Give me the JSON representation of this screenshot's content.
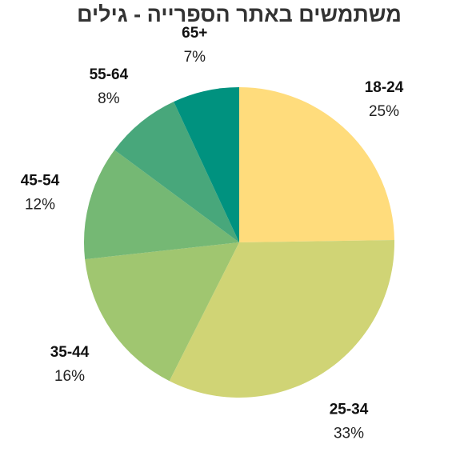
{
  "chart_data": {
    "type": "pie",
    "title": "משתמשים באתר הספרייה - גילים",
    "start_angle_deg": 0,
    "direction": "clockwise",
    "legend": "none",
    "slices": [
      {
        "label": "18-24",
        "value": 25,
        "value_label": "25%",
        "color": "#FFDC7C"
      },
      {
        "label": "25-34",
        "value": 33,
        "value_label": "33%",
        "color": "#D0D475"
      },
      {
        "label": "35-44",
        "value": 16,
        "value_label": "16%",
        "color": "#A0C670"
      },
      {
        "label": "45-54",
        "value": 12,
        "value_label": "12%",
        "color": "#75B874"
      },
      {
        "label": "55-64",
        "value": 8,
        "value_label": "8%",
        "color": "#48A77B"
      },
      {
        "label": "65+",
        "value": 7,
        "value_label": "7%",
        "color": "#00927F"
      }
    ]
  }
}
